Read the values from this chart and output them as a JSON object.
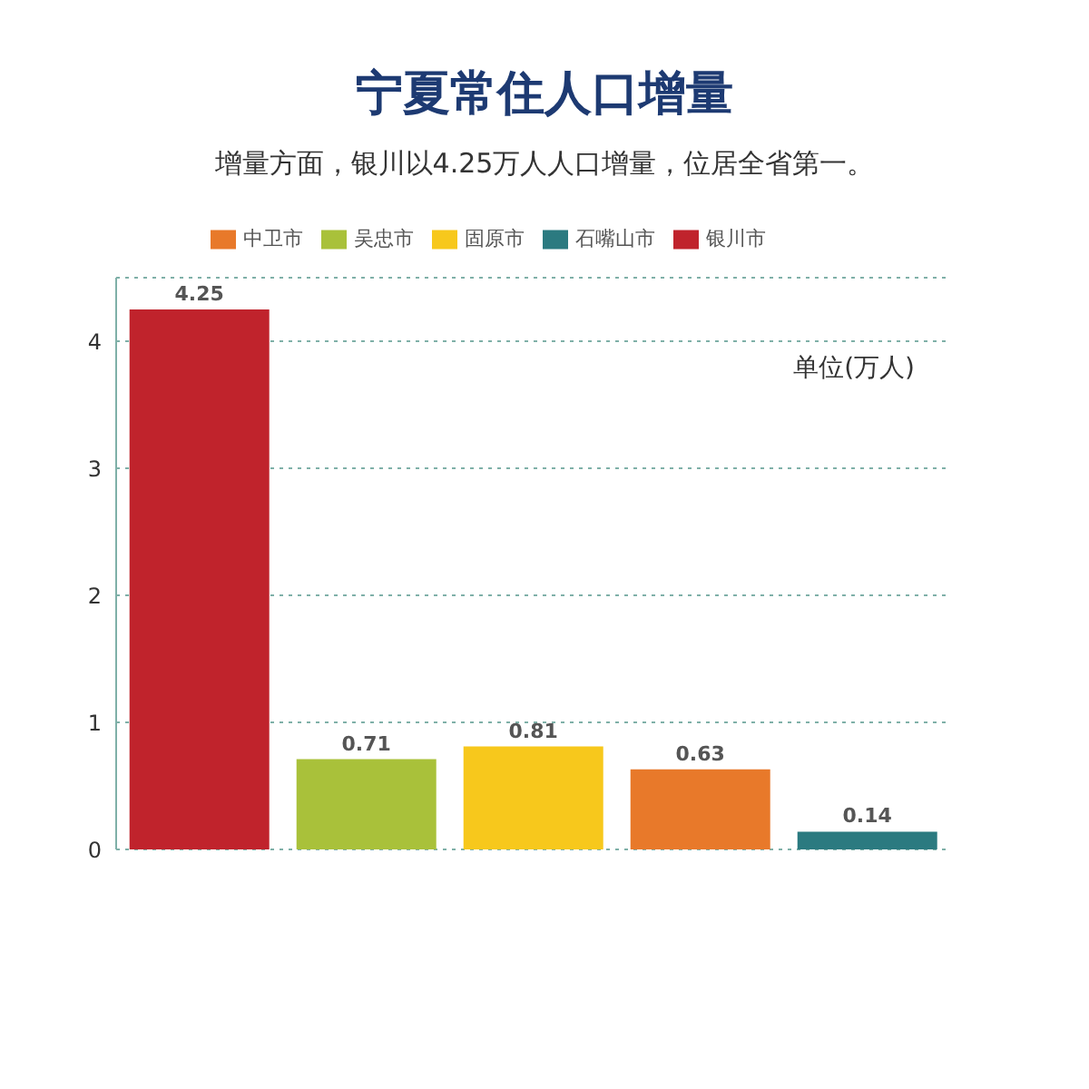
{
  "chart_data": {
    "type": "bar",
    "title": "宁夏常住人口增量",
    "subtitle": "增量方面，银川以4.25万人人口增量，位居全省第一。",
    "categories": [
      null,
      null,
      null,
      null,
      null
    ],
    "series": [
      {
        "name": "银川市",
        "color": "#c0232c",
        "values": [
          4.25,
          null,
          null,
          null,
          null
        ]
      },
      {
        "name": "吴忠市",
        "color": "#a9c13a",
        "values": [
          null,
          0.71,
          null,
          null,
          null
        ]
      },
      {
        "name": "固原市",
        "color": "#f7c81c",
        "values": [
          null,
          null,
          0.81,
          null,
          null
        ]
      },
      {
        "name": "中卫市",
        "color": "#e8792a",
        "values": [
          null,
          null,
          null,
          0.63,
          null
        ]
      },
      {
        "name": "石嘴山市",
        "color": "#2b7a80",
        "values": [
          null,
          null,
          null,
          null,
          0.14
        ]
      }
    ],
    "stacked": true,
    "ylim": [
      0,
      4.5
    ],
    "yticks": [
      0,
      1,
      2,
      3,
      4
    ],
    "grid": "y",
    "legend": "top",
    "tick_labels": "y",
    "data_labels": true,
    "annotations": [
      "单位(万人)"
    ]
  }
}
